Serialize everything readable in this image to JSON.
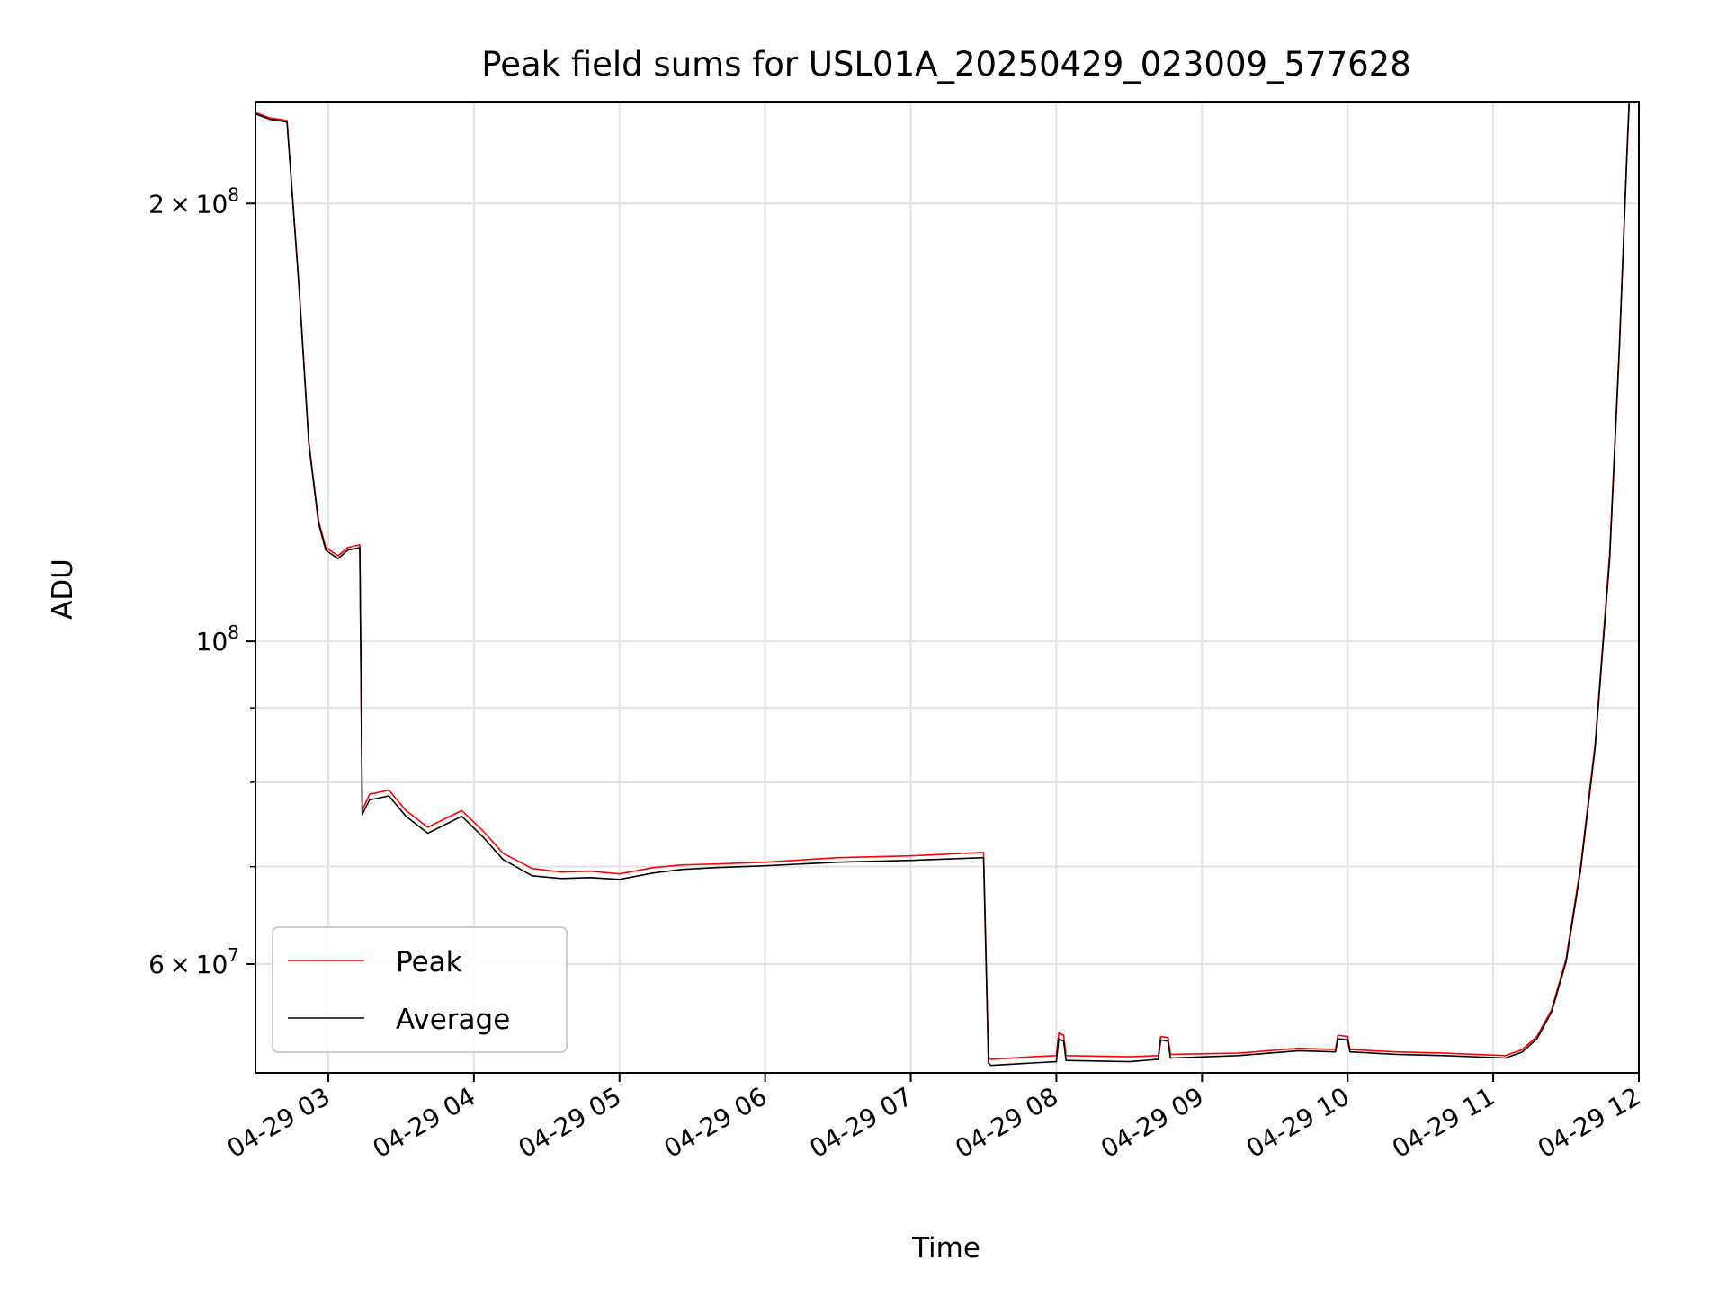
{
  "chart_data": {
    "type": "line",
    "title": "Peak field sums for USL01A_20250429_023009_577628",
    "xlabel": "Time",
    "ylabel": "ADU",
    "yscale": "log",
    "grid": true,
    "legend_position": "lower-left",
    "xlim": [
      "2025-04-29 02:30",
      "2025-04-29 12:00"
    ],
    "ylim": [
      50500000,
      235000000
    ],
    "x_ticks": [
      {
        "value": "2025-04-29 03:00",
        "label": "04-29 03"
      },
      {
        "value": "2025-04-29 04:00",
        "label": "04-29 04"
      },
      {
        "value": "2025-04-29 05:00",
        "label": "04-29 05"
      },
      {
        "value": "2025-04-29 06:00",
        "label": "04-29 06"
      },
      {
        "value": "2025-04-29 07:00",
        "label": "04-29 07"
      },
      {
        "value": "2025-04-29 08:00",
        "label": "04-29 08"
      },
      {
        "value": "2025-04-29 09:00",
        "label": "04-29 09"
      },
      {
        "value": "2025-04-29 10:00",
        "label": "04-29 10"
      },
      {
        "value": "2025-04-29 11:00",
        "label": "04-29 11"
      },
      {
        "value": "2025-04-29 12:00",
        "label": "04-29 12"
      }
    ],
    "y_major_ticks": [
      {
        "value": 60000000,
        "mantissa": "6",
        "exponent": "7"
      },
      {
        "value": 100000000,
        "mantissa": "",
        "exponent": "8"
      },
      {
        "value": 200000000,
        "mantissa": "2",
        "exponent": "8"
      }
    ],
    "y_minor_ticks": [
      70000000,
      80000000,
      90000000
    ],
    "series": [
      {
        "name": "Peak",
        "color": "#ff0000",
        "x": [
          "2025-04-29 02:30",
          "2025-04-29 02:36",
          "2025-04-29 02:40",
          "2025-04-29 02:43",
          "2025-04-29 02:48",
          "2025-04-29 02:52",
          "2025-04-29 02:56",
          "2025-04-29 02:59",
          "2025-04-29 03:04",
          "2025-04-29 03:08",
          "2025-04-29 03:13",
          "2025-04-29 03:14",
          "2025-04-29 03:17",
          "2025-04-29 03:25",
          "2025-04-29 03:32",
          "2025-04-29 03:41",
          "2025-04-29 03:48",
          "2025-04-29 03:55",
          "2025-04-29 04:04",
          "2025-04-29 04:12",
          "2025-04-29 04:24",
          "2025-04-29 04:36",
          "2025-04-29 04:48",
          "2025-04-29 05:00",
          "2025-04-29 05:14",
          "2025-04-29 05:26",
          "2025-04-29 05:40",
          "2025-04-29 06:00",
          "2025-04-29 06:30",
          "2025-04-29 07:00",
          "2025-04-29 07:30",
          "2025-04-29 07:32",
          "2025-04-29 07:33",
          "2025-04-29 07:50",
          "2025-04-29 08:00",
          "2025-04-29 08:01",
          "2025-04-29 08:03",
          "2025-04-29 08:04",
          "2025-04-29 08:30",
          "2025-04-29 08:42",
          "2025-04-29 08:43",
          "2025-04-29 08:46",
          "2025-04-29 08:47",
          "2025-04-29 09:15",
          "2025-04-29 09:40",
          "2025-04-29 09:55",
          "2025-04-29 09:56",
          "2025-04-29 10:00",
          "2025-04-29 10:01",
          "2025-04-29 10:20",
          "2025-04-29 10:40",
          "2025-04-29 11:05",
          "2025-04-29 11:12",
          "2025-04-29 11:18",
          "2025-04-29 11:24",
          "2025-04-29 11:30",
          "2025-04-29 11:36",
          "2025-04-29 11:42",
          "2025-04-29 11:48",
          "2025-04-29 11:52",
          "2025-04-29 11:55",
          "2025-04-29 11:56"
        ],
        "values": [
          231000000,
          229000000,
          228500000,
          228000000,
          175000000,
          137000000,
          121000000,
          116000000,
          114500000,
          116000000,
          116500000,
          76500000,
          78500000,
          79000000,
          76500000,
          74500000,
          75500000,
          76500000,
          74000000,
          71500000,
          69800000,
          69400000,
          69500000,
          69200000,
          69900000,
          70200000,
          70300000,
          70500000,
          71000000,
          71200000,
          71600000,
          51800000,
          51600000,
          51800000,
          51900000,
          53800000,
          53600000,
          51900000,
          51800000,
          51900000,
          53500000,
          53400000,
          52000000,
          52100000,
          52500000,
          52400000,
          53600000,
          53500000,
          52400000,
          52200000,
          52100000,
          51900000,
          52400000,
          53500000,
          55800000,
          60500000,
          70000000,
          85000000,
          115000000,
          160000000,
          215000000,
          235000000
        ]
      },
      {
        "name": "Average",
        "color": "#000000",
        "x": [
          "2025-04-29 02:30",
          "2025-04-29 02:36",
          "2025-04-29 02:40",
          "2025-04-29 02:43",
          "2025-04-29 02:48",
          "2025-04-29 02:52",
          "2025-04-29 02:56",
          "2025-04-29 02:59",
          "2025-04-29 03:04",
          "2025-04-29 03:08",
          "2025-04-29 03:13",
          "2025-04-29 03:14",
          "2025-04-29 03:17",
          "2025-04-29 03:25",
          "2025-04-29 03:32",
          "2025-04-29 03:41",
          "2025-04-29 03:48",
          "2025-04-29 03:55",
          "2025-04-29 04:04",
          "2025-04-29 04:12",
          "2025-04-29 04:24",
          "2025-04-29 04:36",
          "2025-04-29 04:48",
          "2025-04-29 05:00",
          "2025-04-29 05:14",
          "2025-04-29 05:26",
          "2025-04-29 05:40",
          "2025-04-29 06:00",
          "2025-04-29 06:30",
          "2025-04-29 07:00",
          "2025-04-29 07:30",
          "2025-04-29 07:32",
          "2025-04-29 07:33",
          "2025-04-29 07:50",
          "2025-04-29 08:00",
          "2025-04-29 08:01",
          "2025-04-29 08:03",
          "2025-04-29 08:04",
          "2025-04-29 08:30",
          "2025-04-29 08:42",
          "2025-04-29 08:43",
          "2025-04-29 08:46",
          "2025-04-29 08:47",
          "2025-04-29 09:15",
          "2025-04-29 09:40",
          "2025-04-29 09:55",
          "2025-04-29 09:56",
          "2025-04-29 10:00",
          "2025-04-29 10:01",
          "2025-04-29 10:20",
          "2025-04-29 10:40",
          "2025-04-29 11:05",
          "2025-04-29 11:12",
          "2025-04-29 11:18",
          "2025-04-29 11:24",
          "2025-04-29 11:30",
          "2025-04-29 11:36",
          "2025-04-29 11:42",
          "2025-04-29 11:48",
          "2025-04-29 11:52",
          "2025-04-29 11:55",
          "2025-04-29 11:56"
        ],
        "values": [
          230500000,
          228500000,
          228000000,
          227500000,
          174500000,
          136500000,
          120500000,
          115500000,
          114000000,
          115500000,
          116000000,
          76000000,
          77800000,
          78300000,
          75800000,
          73800000,
          74800000,
          75800000,
          73300000,
          70800000,
          69000000,
          68700000,
          68800000,
          68600000,
          69300000,
          69700000,
          69900000,
          70100000,
          70500000,
          70700000,
          71000000,
          51300000,
          51100000,
          51300000,
          51400000,
          53300000,
          53100000,
          51500000,
          51400000,
          51600000,
          53200000,
          53100000,
          51700000,
          51900000,
          52300000,
          52200000,
          53300000,
          53200000,
          52200000,
          52000000,
          51900000,
          51700000,
          52200000,
          53300000,
          55600000,
          60200000,
          69600000,
          84500000,
          114000000,
          159000000,
          214000000,
          234000000
        ]
      }
    ]
  }
}
